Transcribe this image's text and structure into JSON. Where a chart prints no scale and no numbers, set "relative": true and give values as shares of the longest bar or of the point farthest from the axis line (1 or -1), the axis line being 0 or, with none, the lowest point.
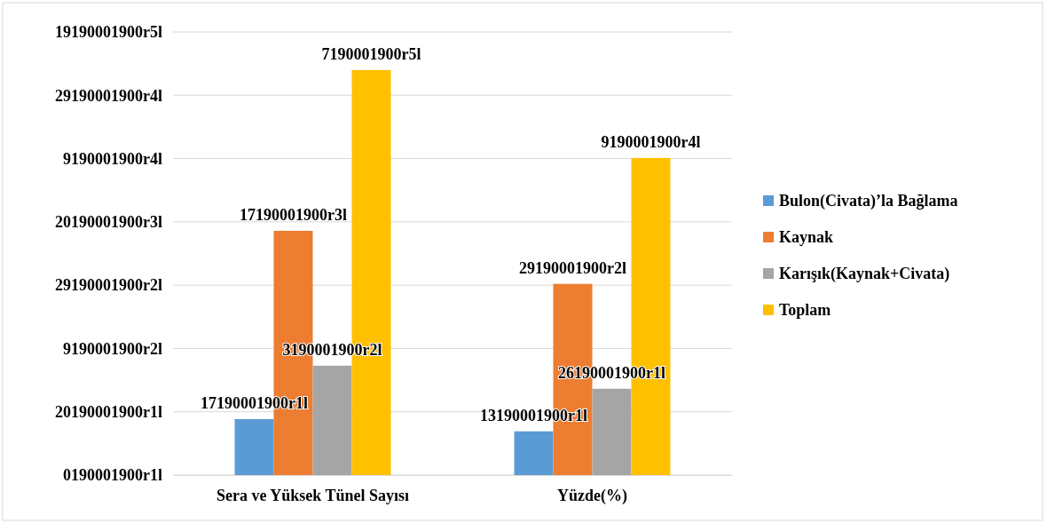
{
  "chart_data": {
    "type": "bar",
    "relative": true,
    "categories": [
      "Sera ve Yüksek Tünel Sayısı",
      "Yüzde(%)"
    ],
    "series": [
      {
        "name": "Bulon(Civata)’la Bağlama",
        "color": "#5b9bd5",
        "values": [
          0.138,
          0.108
        ]
      },
      {
        "name": "Kaynak",
        "color": "#ed7d31",
        "values": [
          0.603,
          0.472
        ]
      },
      {
        "name": "Karışık(Kaynak+Civata)",
        "color": "#a5a5a5",
        "values": [
          0.27,
          0.213
        ]
      },
      {
        "name": "Toplam",
        "color": "#ffc000",
        "values": [
          1,
          0.783
        ]
      }
    ],
    "annotations": [
      "0190001900r1l",
      "20190001900r1l",
      "9190001900r2l",
      "29190001900r2l",
      "20190001900r3l",
      "9190001900r4l",
      "29190001900r4l",
      "19190001900r5l",
      "17190001900r1l",
      "13190001900r1l",
      "17190001900r3l",
      "29190001900r2l",
      "3190001900r2l",
      "26190001900r1l",
      "7190001900r5l",
      "9190001900r4l"
    ],
    "grid": "y",
    "legend": "right"
  }
}
